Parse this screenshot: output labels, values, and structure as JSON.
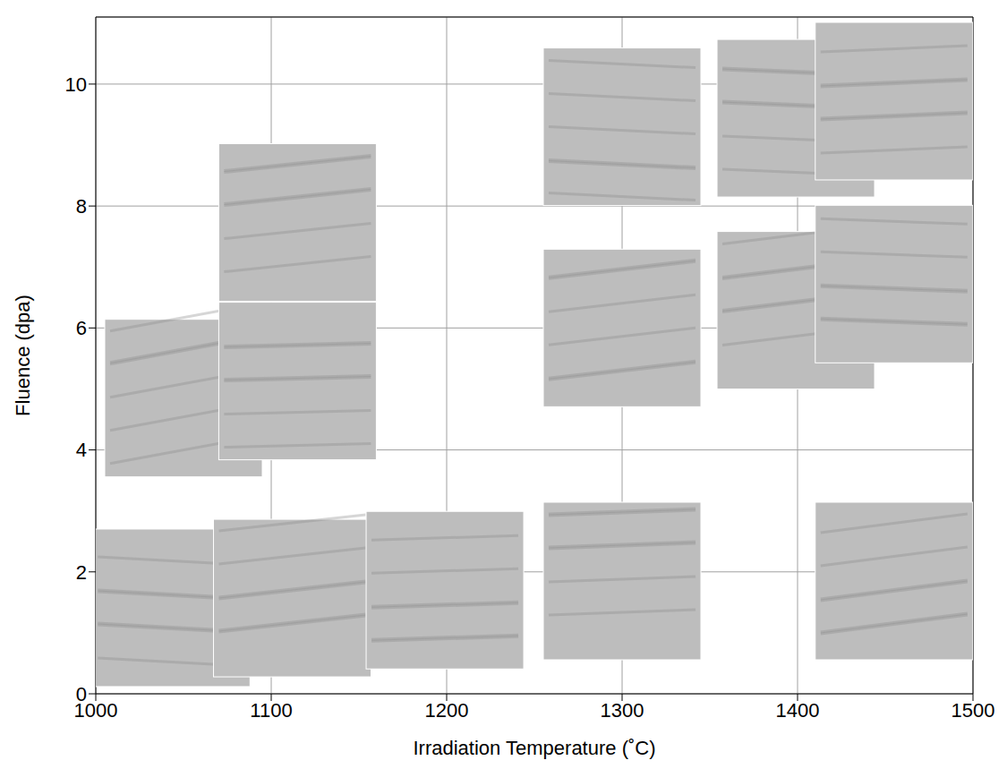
{
  "chart_data": {
    "type": "scatter",
    "x_label": "Irradiation Temperature (˚C)",
    "y_label": "Fluence (dpa)",
    "x": [
      1050,
      1115,
      1115,
      1043,
      1112,
      1199,
      1300,
      1300,
      1300,
      1399,
      1399,
      1455,
      1455,
      1455
    ],
    "values": [
      4.85,
      7.73,
      5.13,
      1.41,
      1.57,
      1.7,
      9.3,
      6.0,
      1.85,
      9.44,
      6.29,
      9.72,
      6.72,
      1.85
    ],
    "marker": "square",
    "color": "#bdbdbd",
    "xlim": [
      1000,
      1500
    ],
    "ylim": [
      0,
      11.1
    ],
    "xticks": [
      1000,
      1100,
      1200,
      1300,
      1400,
      1500
    ],
    "yticks": [
      0,
      2,
      4,
      6,
      8,
      10
    ],
    "grid": true
  }
}
